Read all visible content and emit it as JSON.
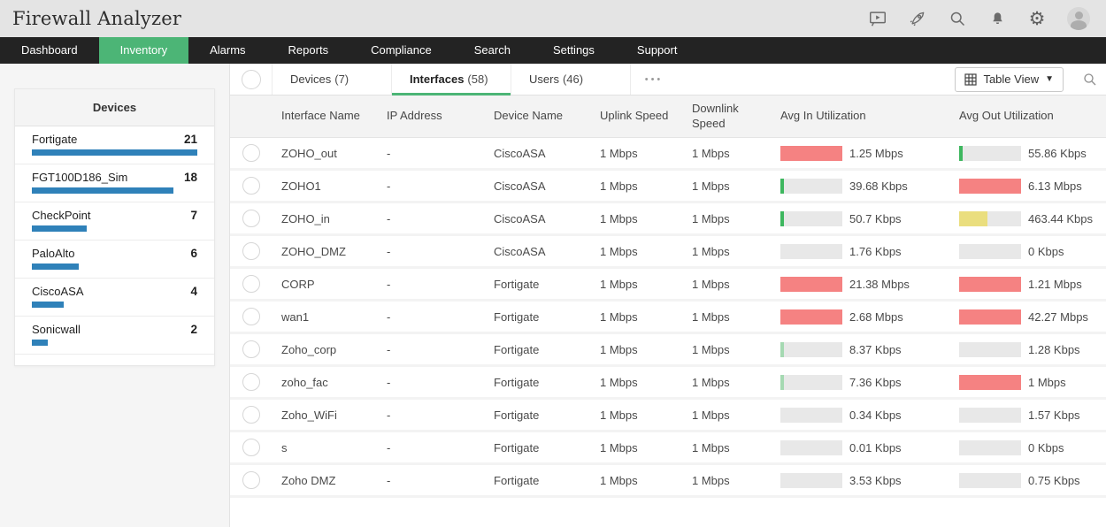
{
  "app": {
    "title": "Firewall Analyzer"
  },
  "topbar": {
    "icons": [
      "presentation-play-icon",
      "rocket-icon",
      "search-icon",
      "bell-icon",
      "gear-icon",
      "user-avatar"
    ]
  },
  "nav": {
    "items": [
      {
        "label": "Dashboard",
        "active": false
      },
      {
        "label": "Inventory",
        "active": true
      },
      {
        "label": "Alarms",
        "active": false
      },
      {
        "label": "Reports",
        "active": false
      },
      {
        "label": "Compliance",
        "active": false
      },
      {
        "label": "Search",
        "active": false
      },
      {
        "label": "Settings",
        "active": false
      },
      {
        "label": "Support",
        "active": false
      }
    ]
  },
  "sidebar": {
    "panel_title": "Devices",
    "max_count": 21,
    "devices": [
      {
        "name": "Fortigate",
        "count": 21
      },
      {
        "name": "FGT100D186_Sim",
        "count": 18
      },
      {
        "name": "CheckPoint",
        "count": 7
      },
      {
        "name": "PaloAlto",
        "count": 6
      },
      {
        "name": "CiscoASA",
        "count": 4
      },
      {
        "name": "Sonicwall",
        "count": 2
      }
    ]
  },
  "tabs": {
    "items": [
      {
        "name": "Devices",
        "count": "(7)",
        "active": false
      },
      {
        "name": "Interfaces",
        "count": "(58)",
        "active": true
      },
      {
        "name": "Users",
        "count": "(46)",
        "active": false
      }
    ],
    "more": "•••",
    "view_selector": {
      "label": "Table View"
    }
  },
  "table": {
    "columns": [
      "Interface Name",
      "IP Address",
      "Device Name",
      "Uplink Speed",
      "Downlink Speed",
      "Avg In Utilization",
      "Avg Out Utilization"
    ],
    "rows": [
      {
        "name": "ZOHO_out",
        "ip": "-",
        "device": "CiscoASA",
        "uplink": "1 Mbps",
        "downlink": "1 Mbps",
        "avg_in": {
          "pct": 100,
          "color": "red",
          "label": "1.25 Mbps"
        },
        "avg_out": {
          "pct": 5,
          "color": "green",
          "label": "55.86 Kbps"
        }
      },
      {
        "name": "ZOHO1",
        "ip": "-",
        "device": "CiscoASA",
        "uplink": "1 Mbps",
        "downlink": "1 Mbps",
        "avg_in": {
          "pct": 5,
          "color": "green",
          "label": "39.68 Kbps"
        },
        "avg_out": {
          "pct": 100,
          "color": "red",
          "label": "6.13 Mbps"
        }
      },
      {
        "name": "ZOHO_in",
        "ip": "-",
        "device": "CiscoASA",
        "uplink": "1 Mbps",
        "downlink": "1 Mbps",
        "avg_in": {
          "pct": 5,
          "color": "green",
          "label": "50.7 Kbps"
        },
        "avg_out": {
          "pct": 46,
          "color": "yellow",
          "label": "463.44 Kbps"
        }
      },
      {
        "name": "ZOHO_DMZ",
        "ip": "-",
        "device": "CiscoASA",
        "uplink": "1 Mbps",
        "downlink": "1 Mbps",
        "avg_in": {
          "pct": 0,
          "color": "none",
          "label": "1.76 Kbps"
        },
        "avg_out": {
          "pct": 0,
          "color": "none",
          "label": "0 Kbps"
        }
      },
      {
        "name": "CORP",
        "ip": "-",
        "device": "Fortigate",
        "uplink": "1 Mbps",
        "downlink": "1 Mbps",
        "avg_in": {
          "pct": 100,
          "color": "red",
          "label": "21.38 Mbps"
        },
        "avg_out": {
          "pct": 100,
          "color": "red",
          "label": "1.21 Mbps"
        }
      },
      {
        "name": "wan1",
        "ip": "-",
        "device": "Fortigate",
        "uplink": "1 Mbps",
        "downlink": "1 Mbps",
        "avg_in": {
          "pct": 100,
          "color": "red",
          "label": "2.68 Mbps"
        },
        "avg_out": {
          "pct": 100,
          "color": "red",
          "label": "42.27 Mbps"
        }
      },
      {
        "name": "Zoho_corp",
        "ip": "-",
        "device": "Fortigate",
        "uplink": "1 Mbps",
        "downlink": "1 Mbps",
        "avg_in": {
          "pct": 5,
          "color": "lightgreen",
          "label": "8.37 Kbps"
        },
        "avg_out": {
          "pct": 0,
          "color": "none",
          "label": "1.28 Kbps"
        }
      },
      {
        "name": "zoho_fac",
        "ip": "-",
        "device": "Fortigate",
        "uplink": "1 Mbps",
        "downlink": "1 Mbps",
        "avg_in": {
          "pct": 5,
          "color": "lightgreen",
          "label": "7.36 Kbps"
        },
        "avg_out": {
          "pct": 100,
          "color": "red",
          "label": "1 Mbps"
        }
      },
      {
        "name": "Zoho_WiFi",
        "ip": "-",
        "device": "Fortigate",
        "uplink": "1 Mbps",
        "downlink": "1 Mbps",
        "avg_in": {
          "pct": 0,
          "color": "none",
          "label": "0.34 Kbps"
        },
        "avg_out": {
          "pct": 0,
          "color": "none",
          "label": "1.57 Kbps"
        }
      },
      {
        "name": "s",
        "ip": "-",
        "device": "Fortigate",
        "uplink": "1 Mbps",
        "downlink": "1 Mbps",
        "avg_in": {
          "pct": 0,
          "color": "none",
          "label": "0.01 Kbps"
        },
        "avg_out": {
          "pct": 0,
          "color": "none",
          "label": "0 Kbps"
        }
      },
      {
        "name": "Zoho DMZ",
        "ip": "-",
        "device": "Fortigate",
        "uplink": "1 Mbps",
        "downlink": "1 Mbps",
        "avg_in": {
          "pct": 0,
          "color": "none",
          "label": "3.53 Kbps"
        },
        "avg_out": {
          "pct": 0,
          "color": "none",
          "label": "0.75 Kbps"
        }
      }
    ]
  },
  "colors": {
    "accent_green": "#4cb576",
    "navbar_bg": "#232323",
    "bar_blue": "#2f81b9",
    "util_red": "#f58282",
    "util_green": "#3eb75f",
    "util_lightgreen": "#a5d9b2",
    "util_yellow": "#eade7e",
    "util_track": "#e8e8e8"
  }
}
